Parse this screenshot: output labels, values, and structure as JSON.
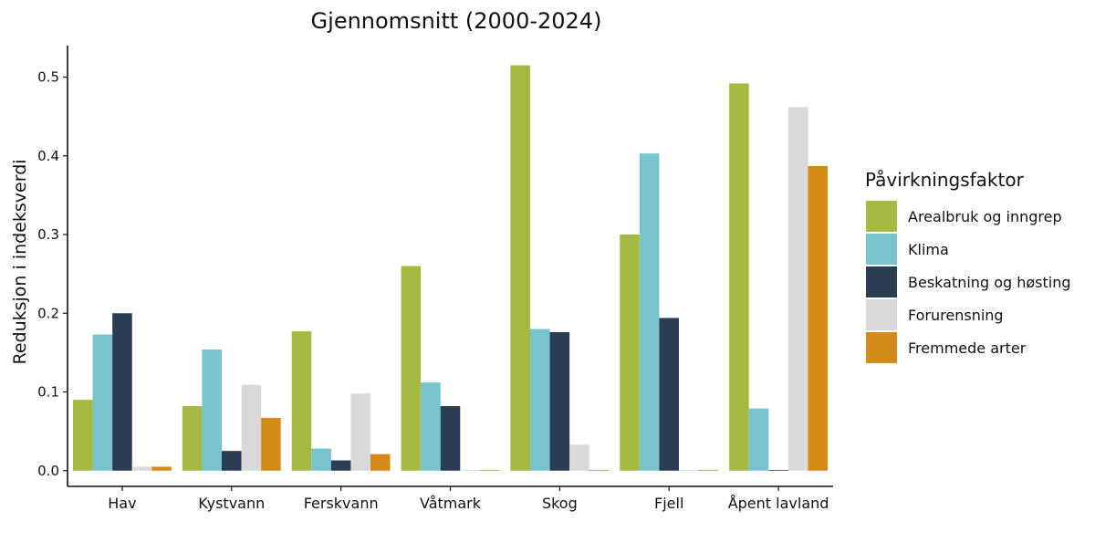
{
  "chart_data": {
    "type": "bar",
    "title": "Gjennomsnitt (2000-2024)",
    "xlabel": "",
    "ylabel": "Reduksjon i indeksverdi",
    "ylim": [
      -0.02,
      0.54
    ],
    "yticks": [
      0.0,
      0.1,
      0.2,
      0.3,
      0.4,
      0.5
    ],
    "ytick_labels": [
      "0.0",
      "0.1",
      "0.2",
      "0.3",
      "0.4",
      "0.5"
    ],
    "grid": false,
    "legend_position": "right",
    "legend_title": "Påvirkningsfaktor",
    "categories": [
      "Hav",
      "Kystvann",
      "Ferskvann",
      "Våtmark",
      "Skog",
      "Fjell",
      "Åpent lavland"
    ],
    "series": [
      {
        "name": "Arealbruk og inngrep",
        "color": "#a6b942",
        "values": [
          0.09,
          0.082,
          0.177,
          0.26,
          0.515,
          0.3,
          0.492
        ]
      },
      {
        "name": "Klima",
        "color": "#77c4cf",
        "values": [
          0.173,
          0.154,
          0.028,
          0.112,
          0.18,
          0.403,
          0.079
        ]
      },
      {
        "name": "Beskatning og høsting",
        "color": "#2b3d52",
        "values": [
          0.2,
          0.025,
          0.013,
          0.082,
          0.176,
          0.194,
          0.0
        ]
      },
      {
        "name": "Forurensning",
        "color": "#d9d9d9",
        "values": [
          0.005,
          0.109,
          0.098,
          0.0,
          0.033,
          0.0,
          0.462
        ]
      },
      {
        "name": "Fremmede arter",
        "color": "#d38a16",
        "values": [
          0.005,
          0.067,
          0.021,
          0.0,
          0.0,
          0.0,
          0.387
        ]
      }
    ]
  }
}
